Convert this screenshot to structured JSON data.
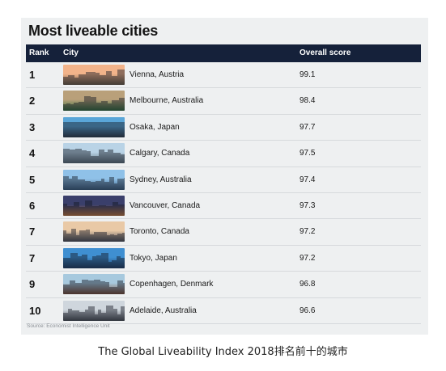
{
  "title": "Most liveable cities",
  "headers": {
    "rank": "Rank",
    "city": "City",
    "score": "Overall score"
  },
  "rows": [
    {
      "rank": "1",
      "city": "Vienna, Austria",
      "score": "99.1",
      "photo": "vienna-photo",
      "sky": "#f2b38a",
      "ground": "#6b5b45"
    },
    {
      "rank": "2",
      "city": "Melbourne, Australia",
      "score": "98.4",
      "photo": "melbourne-photo",
      "sky": "#b9a07a",
      "ground": "#2f6b3a"
    },
    {
      "rank": "3",
      "city": "Osaka, Japan",
      "score": "97.7",
      "photo": "osaka-photo",
      "sky": "#5aa6d8",
      "ground": "#2d3b4a"
    },
    {
      "rank": "4",
      "city": "Calgary, Canada",
      "score": "97.5",
      "photo": "calgary-photo",
      "sky": "#b9d3e6",
      "ground": "#5a6e7a"
    },
    {
      "rank": "5",
      "city": "Sydney, Australia",
      "score": "97.4",
      "photo": "sydney-photo",
      "sky": "#8fc1e8",
      "ground": "#3b5f82"
    },
    {
      "rank": "6",
      "city": "Vancouver, Canada",
      "score": "97.3",
      "photo": "vancouver-photo",
      "sky": "#3a3f6b",
      "ground": "#c97a3c"
    },
    {
      "rank": "7",
      "city": "Toronto, Canada",
      "score": "97.2",
      "photo": "toronto-photo",
      "sky": "#e9c9a6",
      "ground": "#4b4f58"
    },
    {
      "rank": "7",
      "city": "Tokyo, Japan",
      "score": "97.2",
      "photo": "tokyo-photo",
      "sky": "#3f8fd1",
      "ground": "#1d3d66"
    },
    {
      "rank": "9",
      "city": "Copenhagen, Denmark",
      "score": "96.8",
      "photo": "copenhagen-photo",
      "sky": "#a7c9de",
      "ground": "#7a4b34"
    },
    {
      "rank": "10",
      "city": "Adelaide, Australia",
      "score": "96.6",
      "photo": "adelaide-photo",
      "sky": "#cfd6dd",
      "ground": "#4a4f55"
    }
  ],
  "source": "Source: Economist Intelligence Unit",
  "caption": "The Global Liveability Index 2018排名前十的城市",
  "colors": {
    "header_bg": "#15213a",
    "card_bg": "#eef0f1"
  }
}
